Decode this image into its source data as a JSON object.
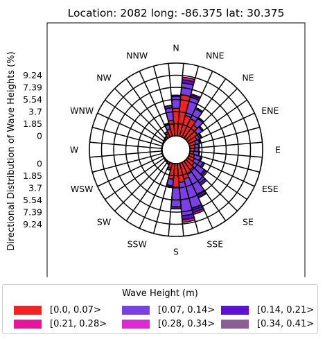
{
  "chart_data": {
    "type": "polar-stacked-bar",
    "title": "Location: 2082 long: -86.375 lat: 30.375",
    "ylabel": "Directional Distribution of Wave Heights (%)",
    "directions": [
      "N",
      "NNE",
      "NE",
      "ENE",
      "E",
      "ESE",
      "SE",
      "SSE",
      "S",
      "SSW",
      "SW",
      "WSW",
      "W",
      "WNW",
      "NW",
      "NNW"
    ],
    "radial_ticks": [
      "0",
      "1.85",
      "3.7",
      "5.54",
      "7.39",
      "9.24"
    ],
    "radial_max": 11.09,
    "sector_count": 36,
    "legend_title": "Wave Height (m)",
    "series": [
      {
        "name": "[0.0, 0.07>",
        "color": "#f42121"
      },
      {
        "name": "[0.07, 0.14>",
        "color": "#7b3fe4"
      },
      {
        "name": "[0.14, 0.21>",
        "color": "#5e10d9"
      },
      {
        "name": "[0.21, 0.28>",
        "color": "#e8149e"
      },
      {
        "name": "[0.28, 0.34>",
        "color": "#de28d6"
      },
      {
        "name": "[0.34, 0.41>",
        "color": "#8b5e96"
      }
    ],
    "sectors": [
      {
        "angle": 0,
        "values": [
          4.2,
          1.8,
          0.2,
          0.0,
          0,
          0
        ]
      },
      {
        "angle": 10,
        "values": [
          6.3,
          1.8,
          0.5,
          0.4,
          0,
          0
        ]
      },
      {
        "angle": 20,
        "values": [
          3.3,
          2.9,
          0.3,
          0.2,
          0,
          0
        ]
      },
      {
        "angle": 30,
        "values": [
          3.1,
          1.7,
          0.2,
          0,
          0,
          0
        ]
      },
      {
        "angle": 40,
        "values": [
          2.5,
          1.2,
          0.2,
          0,
          0,
          0
        ]
      },
      {
        "angle": 50,
        "values": [
          1.9,
          0.9,
          0.2,
          0,
          0,
          0
        ]
      },
      {
        "angle": 60,
        "values": [
          1.4,
          0.7,
          0.15,
          0,
          0,
          0
        ]
      },
      {
        "angle": 70,
        "values": [
          1.0,
          0.6,
          0.15,
          0,
          0,
          0
        ]
      },
      {
        "angle": 80,
        "values": [
          0.8,
          0.6,
          0.1,
          0,
          0,
          0
        ]
      },
      {
        "angle": 90,
        "values": [
          0.7,
          0.6,
          0.1,
          0,
          0,
          0
        ]
      },
      {
        "angle": 100,
        "values": [
          0.6,
          0.8,
          0.1,
          0,
          0,
          0
        ]
      },
      {
        "angle": 110,
        "values": [
          0.8,
          1.0,
          0.2,
          0,
          0,
          0
        ]
      },
      {
        "angle": 120,
        "values": [
          1.0,
          1.4,
          0.3,
          0,
          0,
          0
        ]
      },
      {
        "angle": 130,
        "values": [
          1.3,
          1.9,
          0.3,
          0,
          0,
          0
        ]
      },
      {
        "angle": 140,
        "values": [
          1.6,
          2.5,
          0.4,
          0,
          0,
          0
        ]
      },
      {
        "angle": 150,
        "values": [
          2.0,
          3.4,
          0.5,
          0.1,
          0,
          0
        ]
      },
      {
        "angle": 160,
        "values": [
          2.5,
          4.6,
          0.7,
          0.3,
          0,
          0
        ]
      },
      {
        "angle": 170,
        "values": [
          2.9,
          5.1,
          0.6,
          0.4,
          0,
          0
        ]
      },
      {
        "angle": 180,
        "values": [
          3.6,
          3.0,
          0.3,
          0,
          0,
          0
        ]
      },
      {
        "angle": 190,
        "values": [
          2.4,
          1.0,
          0.2,
          0,
          0,
          0
        ]
      },
      {
        "angle": 200,
        "values": [
          0.8,
          0.3,
          0.05,
          0,
          0,
          0
        ]
      },
      {
        "angle": 210,
        "values": [
          0.3,
          0.1,
          0,
          0,
          0,
          0
        ]
      },
      {
        "angle": 220,
        "values": [
          0.2,
          0.05,
          0,
          0,
          0,
          0
        ]
      },
      {
        "angle": 230,
        "values": [
          0.15,
          0,
          0,
          0,
          0,
          0
        ]
      },
      {
        "angle": 240,
        "values": [
          0.1,
          0,
          0,
          0,
          0,
          0
        ]
      },
      {
        "angle": 250,
        "values": [
          0.1,
          0,
          0,
          0,
          0,
          0
        ]
      },
      {
        "angle": 260,
        "values": [
          0.1,
          0,
          0,
          0,
          0,
          0
        ]
      },
      {
        "angle": 270,
        "values": [
          0.1,
          0,
          0,
          0,
          0,
          0
        ]
      },
      {
        "angle": 280,
        "values": [
          0.1,
          0,
          0,
          0,
          0,
          0
        ]
      },
      {
        "angle": 290,
        "values": [
          0.1,
          0,
          0,
          0,
          0,
          0
        ]
      },
      {
        "angle": 300,
        "values": [
          0.15,
          0,
          0,
          0,
          0,
          0
        ]
      },
      {
        "angle": 310,
        "values": [
          0.2,
          0.05,
          0,
          0,
          0,
          0
        ]
      },
      {
        "angle": 320,
        "values": [
          0.3,
          0.1,
          0,
          0,
          0,
          0
        ]
      },
      {
        "angle": 330,
        "values": [
          0.6,
          0.3,
          0.05,
          0,
          0,
          0
        ]
      },
      {
        "angle": 340,
        "values": [
          1.2,
          0.8,
          0.1,
          0,
          0,
          0
        ]
      },
      {
        "angle": 350,
        "values": [
          2.4,
          1.9,
          0.4,
          0,
          0,
          0
        ]
      }
    ]
  }
}
